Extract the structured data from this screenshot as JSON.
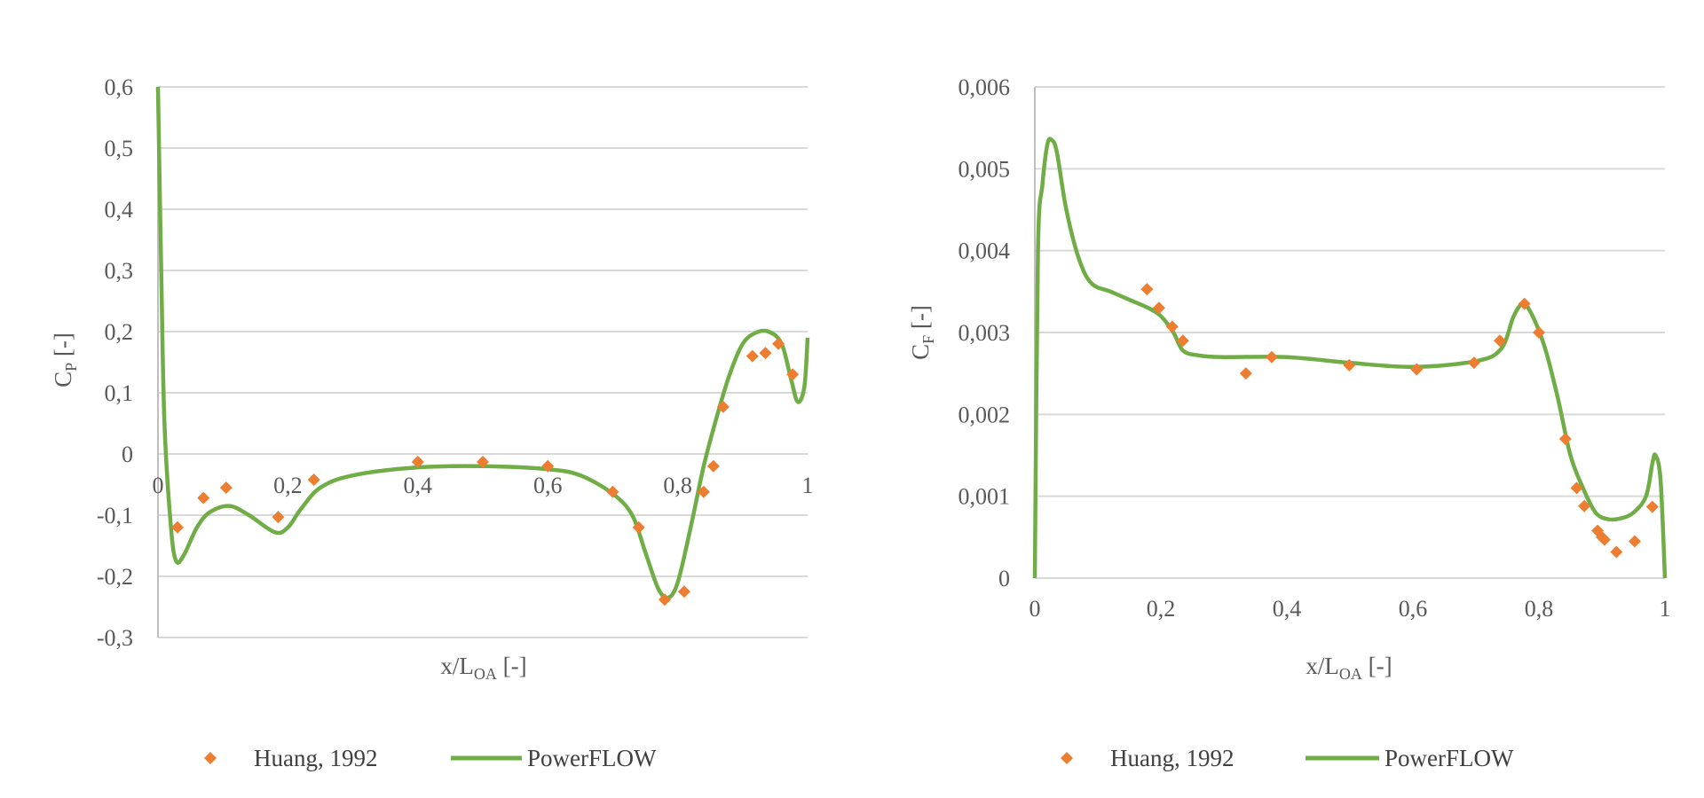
{
  "colors": {
    "marker": "#ed7d31",
    "line": "#70ad47",
    "grid": "#d9d9d9"
  },
  "chart_data": [
    {
      "type": "line",
      "ylabel": {
        "main": "C",
        "sub": "P",
        "suffix": " [-]"
      },
      "xlabel": {
        "main": "x/L",
        "sub": "OA",
        "suffix": " [-]"
      },
      "xlim": [
        0,
        1
      ],
      "ylim": [
        -0.3,
        0.6
      ],
      "xticks": [
        "0",
        "0,2",
        "0,4",
        "0,6",
        "0,8",
        "1"
      ],
      "yticks": [
        "-0,3",
        "-0,2",
        "-0,1",
        "0",
        "0,1",
        "0,2",
        "0,3",
        "0,4",
        "0,5",
        "0,6"
      ],
      "grid": true,
      "legend": "bottom",
      "series": [
        {
          "name": "Huang, 1992",
          "kind": "scatter",
          "x": [
            0.03,
            0.07,
            0.105,
            0.185,
            0.24,
            0.4,
            0.5,
            0.6,
            0.7,
            0.74,
            0.78,
            0.81,
            0.84,
            0.855,
            0.87,
            0.915,
            0.935,
            0.955,
            0.977
          ],
          "y": [
            -0.12,
            -0.072,
            -0.055,
            -0.103,
            -0.042,
            -0.013,
            -0.013,
            -0.02,
            -0.062,
            -0.12,
            -0.238,
            -0.225,
            -0.062,
            -0.02,
            0.077,
            0.16,
            0.165,
            0.18,
            0.13
          ]
        },
        {
          "name": "PowerFLOW",
          "kind": "line",
          "x": [
            0,
            0.005,
            0.01,
            0.02,
            0.028,
            0.04,
            0.06,
            0.08,
            0.11,
            0.14,
            0.18,
            0.2,
            0.22,
            0.25,
            0.3,
            0.4,
            0.5,
            0.6,
            0.65,
            0.7,
            0.73,
            0.75,
            0.77,
            0.785,
            0.8,
            0.82,
            0.84,
            0.86,
            0.88,
            0.9,
            0.92,
            0.94,
            0.96,
            0.975,
            0.985,
            0.995,
            1.0
          ],
          "y": [
            0.6,
            0.3,
            0.05,
            -0.12,
            -0.175,
            -0.165,
            -0.12,
            -0.095,
            -0.085,
            -0.1,
            -0.128,
            -0.12,
            -0.09,
            -0.055,
            -0.035,
            -0.022,
            -0.02,
            -0.025,
            -0.035,
            -0.065,
            -0.1,
            -0.16,
            -0.22,
            -0.235,
            -0.21,
            -0.12,
            -0.02,
            0.06,
            0.13,
            0.18,
            0.198,
            0.2,
            0.18,
            0.12,
            0.085,
            0.11,
            0.19
          ]
        }
      ]
    },
    {
      "type": "line",
      "ylabel": {
        "main": "C",
        "sub": "F",
        "suffix": " [-]"
      },
      "xlabel": {
        "main": "x/L",
        "sub": "OA",
        "suffix": " [-]"
      },
      "xlim": [
        0,
        1
      ],
      "ylim": [
        0,
        0.006
      ],
      "xticks": [
        "0",
        "0,2",
        "0,4",
        "0,6",
        "0,8",
        "1"
      ],
      "yticks": [
        "0",
        "0,001",
        "0,002",
        "0,003",
        "0,004",
        "0,005",
        "0,006"
      ],
      "grid": true,
      "legend": "bottom",
      "series": [
        {
          "name": "Huang, 1992",
          "kind": "scatter",
          "x": [
            0.178,
            0.197,
            0.218,
            0.235,
            0.335,
            0.376,
            0.499,
            0.606,
            0.697,
            0.738,
            0.777,
            0.8,
            0.842,
            0.86,
            0.872,
            0.893,
            0.9,
            0.904,
            0.923,
            0.952,
            0.98
          ],
          "y": [
            0.00353,
            0.0033,
            0.00307,
            0.0029,
            0.0025,
            0.0027,
            0.0026,
            0.00255,
            0.00263,
            0.0029,
            0.00335,
            0.003,
            0.0017,
            0.0011,
            0.00088,
            0.00058,
            0.0005,
            0.00047,
            0.00032,
            0.00045,
            0.00087
          ]
        },
        {
          "name": "PowerFLOW",
          "kind": "line",
          "x": [
            0,
            0.005,
            0.012,
            0.02,
            0.027,
            0.035,
            0.05,
            0.07,
            0.09,
            0.12,
            0.15,
            0.18,
            0.2,
            0.22,
            0.235,
            0.26,
            0.3,
            0.4,
            0.5,
            0.6,
            0.7,
            0.74,
            0.76,
            0.775,
            0.79,
            0.81,
            0.83,
            0.85,
            0.87,
            0.89,
            0.91,
            0.93,
            0.95,
            0.97,
            0.98,
            0.985,
            0.993,
            1.0
          ],
          "y": [
            0,
            0.004,
            0.0048,
            0.0053,
            0.00535,
            0.0052,
            0.0045,
            0.0039,
            0.0036,
            0.0035,
            0.0034,
            0.0033,
            0.0032,
            0.003,
            0.00278,
            0.00272,
            0.0027,
            0.0027,
            0.00263,
            0.00258,
            0.00265,
            0.0028,
            0.0032,
            0.00335,
            0.0032,
            0.0028,
            0.0022,
            0.0015,
            0.0011,
            0.0008,
            0.00072,
            0.00073,
            0.0008,
            0.001,
            0.0014,
            0.0015,
            0.0012,
            0
          ]
        }
      ]
    }
  ]
}
